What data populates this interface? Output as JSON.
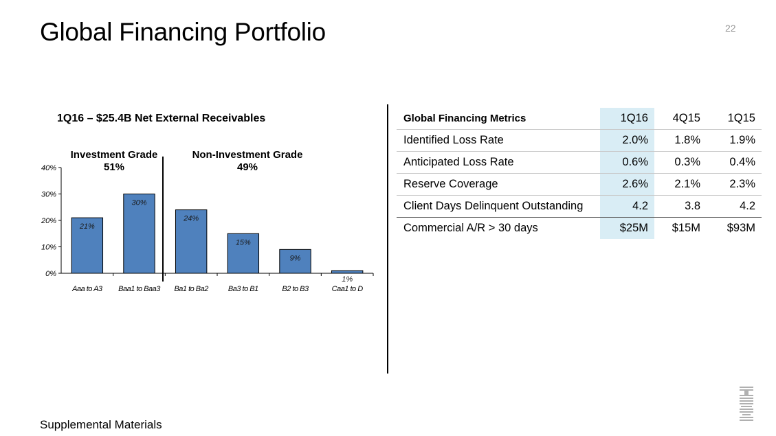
{
  "slide": {
    "title": "Global Financing Portfolio",
    "page_number": "22",
    "footer": "Supplemental Materials"
  },
  "chart_section": {
    "title": "1Q16 – $25.4B Net External Receivables",
    "investment_grade": {
      "label": "Investment Grade",
      "pct": "51%"
    },
    "non_investment_grade": {
      "label": "Non-Investment Grade",
      "pct": "49%"
    }
  },
  "chart_data": {
    "type": "bar",
    "title": "1Q16 – $25.4B Net External Receivables",
    "categories": [
      "Aaa to A3",
      "Baa1 to Baa3",
      "Ba1 to Ba2",
      "Ba3 to B1",
      "B2 to B3",
      "Caa1 to D"
    ],
    "values": [
      21,
      30,
      24,
      15,
      9,
      1
    ],
    "data_labels": [
      "21%",
      "30%",
      "24%",
      "15%",
      "9%",
      "1%"
    ],
    "y_ticks": [
      "0%",
      "10%",
      "20%",
      "30%",
      "40%"
    ],
    "ylim": [
      0,
      40
    ],
    "bar_color": "#4f81bd",
    "grid": false,
    "legend": "none"
  },
  "metrics_table": {
    "header": [
      "Global Financing Metrics",
      "1Q16",
      "4Q15",
      "1Q15"
    ],
    "rows": [
      [
        "Identified Loss Rate",
        "2.0%",
        "1.8%",
        "1.9%"
      ],
      [
        "Anticipated Loss Rate",
        "0.6%",
        "0.3%",
        "0.4%"
      ],
      [
        "Reserve Coverage",
        "2.6%",
        "2.1%",
        "2.3%"
      ],
      [
        "Client Days Delinquent Outstanding",
        "4.2",
        "3.8",
        "4.2"
      ],
      [
        "Commercial A/R > 30 days",
        "$25M",
        "$15M",
        "$93M"
      ]
    ],
    "highlight_color": "#d9edf5"
  },
  "logo": {
    "name": "ibm-logo",
    "text": "IBM"
  }
}
